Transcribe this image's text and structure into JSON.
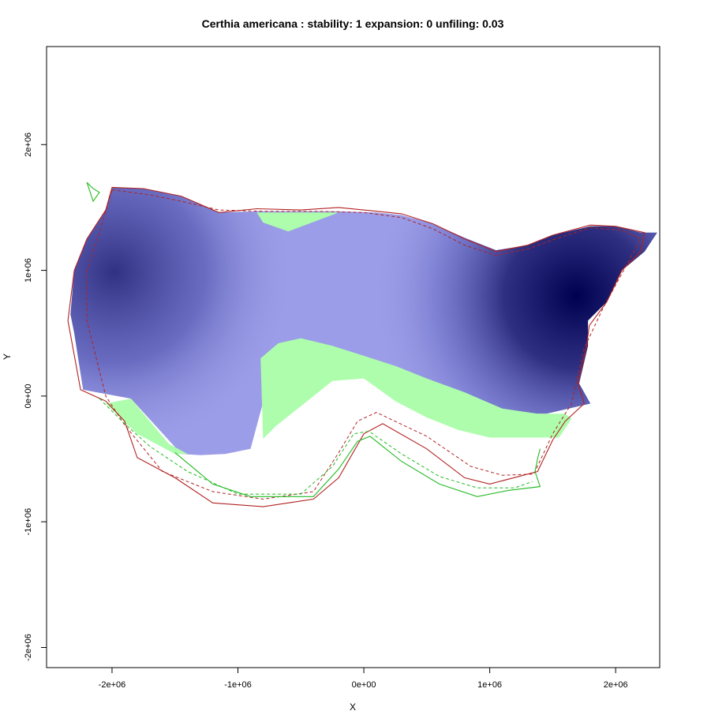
{
  "chart_data": {
    "type": "heatmap",
    "title": "Certhia americana : stability: 1 expansion: 0 unfiling: 0.03",
    "xlabel": "X",
    "ylabel": "Y",
    "xlim": [
      -2520000,
      2350000
    ],
    "ylim": [
      -2160000,
      2780000
    ],
    "x_ticks": [
      {
        "value": -2000000,
        "label": "-2e+06"
      },
      {
        "value": -1000000,
        "label": "-1e+06"
      },
      {
        "value": 0,
        "label": "0e+00"
      },
      {
        "value": 1000000,
        "label": "1e+06"
      },
      {
        "value": 2000000,
        "label": "2e+06"
      }
    ],
    "y_ticks": [
      {
        "value": -2000000,
        "label": "-2e+06"
      },
      {
        "value": -1000000,
        "label": "-1e+06"
      },
      {
        "value": 0,
        "label": "0e+00"
      },
      {
        "value": 1000000,
        "label": "1e+06"
      },
      {
        "value": 2000000,
        "label": "2e+06"
      }
    ],
    "density_peaks": [
      {
        "x": -2000000,
        "y": 1000000,
        "value": 0.75
      },
      {
        "x": 1700000,
        "y": 800000,
        "value": 1.0
      }
    ],
    "colors": {
      "density_low": "#9c9de8",
      "density_high": "#000050",
      "unfilling": "#adfdad",
      "native_contour": "#b22222",
      "invaded_contour": "#22bb22",
      "background": "#ffffff"
    },
    "series": [
      {
        "name": "stability-density",
        "style": "fill",
        "color": "#9c9de8",
        "points": [
          [
            -2000000,
            1660000
          ],
          [
            -1750000,
            1650000
          ],
          [
            -1450000,
            1590000
          ],
          [
            -1150000,
            1460000
          ],
          [
            -850000,
            1470000
          ],
          [
            -500000,
            1470000
          ],
          [
            -200000,
            1470000
          ],
          [
            100000,
            1460000
          ],
          [
            300000,
            1440000
          ],
          [
            550000,
            1370000
          ],
          [
            800000,
            1260000
          ],
          [
            1050000,
            1160000
          ],
          [
            1300000,
            1200000
          ],
          [
            1500000,
            1280000
          ],
          [
            1800000,
            1350000
          ],
          [
            2000000,
            1350000
          ],
          [
            2200000,
            1300000
          ],
          [
            2330000,
            1300000
          ],
          [
            2230000,
            1150000
          ],
          [
            2050000,
            1000000
          ],
          [
            1930000,
            750000
          ],
          [
            1780000,
            600000
          ],
          [
            1780000,
            400000
          ],
          [
            1710000,
            100000
          ],
          [
            1800000,
            -60000
          ],
          [
            1450000,
            -140000
          ],
          [
            1000000,
            -140000
          ],
          [
            500000,
            -20000
          ],
          [
            0,
            140000
          ],
          [
            -400000,
            390000
          ],
          [
            -700000,
            300000
          ],
          [
            -800000,
            -50000
          ],
          [
            -900000,
            -420000
          ],
          [
            -1100000,
            -460000
          ],
          [
            -1300000,
            -470000
          ],
          [
            -1450000,
            -460000
          ],
          [
            -1850000,
            -20000
          ],
          [
            -2230000,
            50000
          ],
          [
            -2300000,
            500000
          ],
          [
            -2330000,
            650000
          ],
          [
            -2300000,
            1000000
          ],
          [
            -2200000,
            1250000
          ],
          [
            -2050000,
            1480000
          ],
          [
            -2000000,
            1660000
          ]
        ]
      },
      {
        "name": "unfilling",
        "style": "fill",
        "color": "#adfdad",
        "points": [
          [
            -850000,
            1460000
          ],
          [
            -200000,
            1460000
          ],
          [
            -600000,
            1310000
          ],
          [
            -800000,
            1380000
          ],
          [
            -850000,
            1460000
          ]
        ]
      },
      {
        "name": "unfilling",
        "style": "fill",
        "color": "#adfdad",
        "points": [
          [
            -800000,
            -340000
          ],
          [
            -820000,
            300000
          ],
          [
            -680000,
            420000
          ],
          [
            -500000,
            460000
          ],
          [
            -250000,
            400000
          ],
          [
            0,
            320000
          ],
          [
            250000,
            240000
          ],
          [
            500000,
            140000
          ],
          [
            800000,
            30000
          ],
          [
            1100000,
            -100000
          ],
          [
            1380000,
            -140000
          ],
          [
            1600000,
            -140000
          ],
          [
            1650000,
            -180000
          ],
          [
            1550000,
            -330000
          ],
          [
            1300000,
            -330000
          ],
          [
            1000000,
            -330000
          ],
          [
            750000,
            -270000
          ],
          [
            500000,
            -170000
          ],
          [
            250000,
            -40000
          ],
          [
            0,
            140000
          ],
          [
            -250000,
            120000
          ],
          [
            -500000,
            -80000
          ],
          [
            -700000,
            -240000
          ],
          [
            -800000,
            -340000
          ]
        ]
      },
      {
        "name": "unfilling",
        "style": "fill",
        "color": "#adfdad",
        "points": [
          [
            -2050000,
            -60000
          ],
          [
            -1850000,
            -20000
          ],
          [
            -1700000,
            -200000
          ],
          [
            -1550000,
            -380000
          ],
          [
            -1400000,
            -460000
          ],
          [
            -1500000,
            -460000
          ],
          [
            -1800000,
            -300000
          ],
          [
            -2050000,
            -60000
          ]
        ]
      },
      {
        "name": "native-range",
        "style": "solid",
        "color": "#b22222",
        "points": [
          [
            -2000000,
            1660000
          ],
          [
            -1750000,
            1650000
          ],
          [
            -1450000,
            1590000
          ],
          [
            -1150000,
            1460000
          ],
          [
            -850000,
            1490000
          ],
          [
            -500000,
            1480000
          ],
          [
            -200000,
            1500000
          ],
          [
            100000,
            1470000
          ],
          [
            300000,
            1450000
          ],
          [
            550000,
            1370000
          ],
          [
            800000,
            1250000
          ],
          [
            1050000,
            1150000
          ],
          [
            1300000,
            1200000
          ],
          [
            1500000,
            1280000
          ],
          [
            1800000,
            1360000
          ],
          [
            2000000,
            1350000
          ],
          [
            2230000,
            1300000
          ],
          [
            2200000,
            1150000
          ],
          [
            2050000,
            1000000
          ],
          [
            1930000,
            750000
          ],
          [
            1790000,
            560000
          ],
          [
            1770000,
            400000
          ],
          [
            1700000,
            100000
          ],
          [
            1750000,
            -60000
          ],
          [
            1600000,
            -200000
          ],
          [
            1500000,
            -350000
          ],
          [
            1380000,
            -600000
          ],
          [
            1000000,
            -700000
          ],
          [
            800000,
            -650000
          ],
          [
            500000,
            -420000
          ],
          [
            150000,
            -220000
          ],
          [
            0,
            -300000
          ],
          [
            -200000,
            -650000
          ],
          [
            -400000,
            -820000
          ],
          [
            -800000,
            -880000
          ],
          [
            -1200000,
            -850000
          ],
          [
            -1500000,
            -650000
          ],
          [
            -1800000,
            -490000
          ],
          [
            -1900000,
            -200000
          ],
          [
            -2050000,
            -40000
          ],
          [
            -2250000,
            50000
          ],
          [
            -2350000,
            600000
          ],
          [
            -2300000,
            1000000
          ],
          [
            -2200000,
            1250000
          ],
          [
            -2050000,
            1480000
          ],
          [
            -2000000,
            1660000
          ]
        ]
      },
      {
        "name": "native-range-subset",
        "style": "dashed",
        "color": "#b22222",
        "points": [
          [
            -2000000,
            1640000
          ],
          [
            -1700000,
            1600000
          ],
          [
            -1450000,
            1550000
          ],
          [
            -1150000,
            1480000
          ],
          [
            -800000,
            1470000
          ],
          [
            -400000,
            1470000
          ],
          [
            0,
            1460000
          ],
          [
            300000,
            1420000
          ],
          [
            550000,
            1330000
          ],
          [
            800000,
            1200000
          ],
          [
            1050000,
            1120000
          ],
          [
            1300000,
            1170000
          ],
          [
            1550000,
            1260000
          ],
          [
            1800000,
            1340000
          ],
          [
            2050000,
            1320000
          ],
          [
            2200000,
            1250000
          ],
          [
            1900000,
            700000
          ],
          [
            1750000,
            380000
          ],
          [
            1650000,
            -60000
          ],
          [
            1500000,
            -300000
          ],
          [
            1350000,
            -620000
          ],
          [
            1100000,
            -630000
          ],
          [
            850000,
            -560000
          ],
          [
            500000,
            -320000
          ],
          [
            100000,
            -130000
          ],
          [
            -50000,
            -200000
          ],
          [
            -200000,
            -450000
          ],
          [
            -400000,
            -760000
          ],
          [
            -800000,
            -820000
          ],
          [
            -1200000,
            -760000
          ],
          [
            -1600000,
            -600000
          ],
          [
            -1900000,
            -230000
          ],
          [
            -2050000,
            0
          ],
          [
            -2200000,
            600000
          ],
          [
            -2200000,
            1000000
          ],
          [
            -2100000,
            1300000
          ],
          [
            -2000000,
            1640000
          ]
        ]
      },
      {
        "name": "invaded-range",
        "style": "solid",
        "color": "#22bb22",
        "points": [
          [
            -2200000,
            1700000
          ],
          [
            -2150000,
            1650000
          ],
          [
            -2100000,
            1620000
          ],
          [
            -2150000,
            1550000
          ],
          [
            -2200000,
            1700000
          ]
        ]
      },
      {
        "name": "invaded-range",
        "style": "solid",
        "color": "#22bb22",
        "points": [
          [
            -1500000,
            -450000
          ],
          [
            -1200000,
            -700000
          ],
          [
            -900000,
            -800000
          ],
          [
            -400000,
            -800000
          ],
          [
            -200000,
            -580000
          ],
          [
            -50000,
            -360000
          ],
          [
            50000,
            -320000
          ],
          [
            300000,
            -520000
          ],
          [
            600000,
            -700000
          ],
          [
            900000,
            -800000
          ],
          [
            1150000,
            -750000
          ],
          [
            1400000,
            -720000
          ],
          [
            1360000,
            -600000
          ],
          [
            1380000,
            -500000
          ],
          [
            1400000,
            -420000
          ]
        ]
      },
      {
        "name": "invaded-range-subset",
        "style": "dashed",
        "color": "#22bb22",
        "points": [
          [
            -2100000,
            -20000
          ],
          [
            -1900000,
            -220000
          ],
          [
            -1700000,
            -400000
          ],
          [
            -1400000,
            -600000
          ],
          [
            -1000000,
            -780000
          ],
          [
            -500000,
            -780000
          ],
          [
            -250000,
            -560000
          ],
          [
            -80000,
            -300000
          ],
          [
            40000,
            -280000
          ],
          [
            300000,
            -460000
          ],
          [
            600000,
            -640000
          ],
          [
            900000,
            -730000
          ],
          [
            1200000,
            -730000
          ],
          [
            1340000,
            -680000
          ]
        ]
      }
    ]
  }
}
